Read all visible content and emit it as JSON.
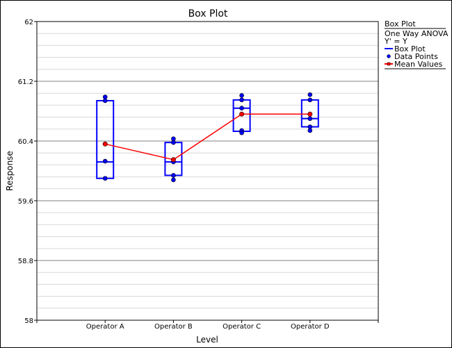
{
  "chart_data": {
    "type": "box",
    "title": "Box Plot",
    "xlabel": "Level",
    "ylabel": "Response",
    "ylim": [
      58,
      62
    ],
    "yticks": [
      "58",
      "58.8",
      "59.6",
      "60.4",
      "61.2",
      "62"
    ],
    "grid": true,
    "categories": [
      "Operator A",
      "Operator B",
      "Operator C",
      "Operator D"
    ],
    "boxes": [
      {
        "q1": 59.9,
        "median": 60.12,
        "q3": 60.94
      },
      {
        "q1": 59.94,
        "median": 60.12,
        "q3": 60.38
      },
      {
        "q1": 60.53,
        "median": 60.84,
        "q3": 60.95
      },
      {
        "q1": 60.59,
        "median": 60.7,
        "q3": 60.95
      }
    ],
    "points": [
      [
        60.99,
        60.94,
        60.13,
        59.9
      ],
      [
        60.43,
        60.38,
        60.12,
        59.94,
        59.88
      ],
      [
        61.01,
        60.95,
        60.84,
        60.54,
        60.51
      ],
      [
        61.02,
        60.95,
        60.7,
        60.59,
        60.54
      ]
    ],
    "means": [
      60.36,
      60.15,
      60.76,
      60.76
    ],
    "colors": {
      "box": "#0000ff",
      "points": "#0000ff",
      "mean": "#ff0000"
    },
    "legend": {
      "placement": "right",
      "title": "Box Plot",
      "lines": [
        "One Way ANOVA",
        "Y' = Y"
      ],
      "entries": [
        "Box Plot",
        "Data Points",
        "Mean Values"
      ]
    }
  }
}
